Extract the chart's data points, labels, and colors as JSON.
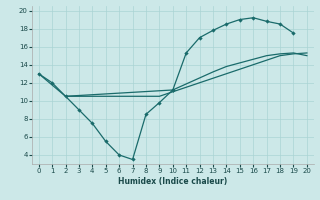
{
  "xlabel": "Humidex (Indice chaleur)",
  "xlim": [
    -0.5,
    20.5
  ],
  "ylim": [
    3,
    20.5
  ],
  "yticks": [
    4,
    6,
    8,
    10,
    12,
    14,
    16,
    18,
    20
  ],
  "xticks": [
    0,
    1,
    2,
    3,
    4,
    5,
    6,
    7,
    8,
    9,
    10,
    11,
    12,
    13,
    14,
    15,
    16,
    17,
    18,
    19,
    20
  ],
  "bg_color": "#cce8e8",
  "line_color": "#1a6b6b",
  "grid_color": "#aad4d4",
  "line1_x": [
    0,
    1,
    2,
    3,
    4,
    5,
    6,
    7,
    8,
    9,
    10
  ],
  "line1_y": [
    13.0,
    12.0,
    10.5,
    9.0,
    7.5,
    5.5,
    4.0,
    3.5,
    8.5,
    9.8,
    11.2
  ],
  "line2_x": [
    10,
    11,
    12,
    13,
    14,
    15,
    16,
    17,
    18,
    19
  ],
  "line2_y": [
    11.2,
    15.3,
    17.0,
    17.8,
    18.5,
    19.0,
    19.2,
    18.8,
    18.5,
    17.5
  ],
  "line3_x": [
    0,
    2,
    10,
    13,
    14,
    15,
    16,
    17,
    18,
    19,
    20
  ],
  "line3_y": [
    13.0,
    10.5,
    11.2,
    13.2,
    13.8,
    14.2,
    14.6,
    15.0,
    15.2,
    15.3,
    15.0
  ],
  "line4_x": [
    2,
    3,
    4,
    5,
    6,
    7,
    8,
    9,
    10,
    11,
    12,
    13,
    14,
    15,
    16,
    17,
    18,
    19,
    20
  ],
  "line4_y": [
    10.5,
    10.5,
    10.5,
    10.5,
    10.5,
    10.5,
    10.5,
    10.5,
    11.0,
    11.5,
    12.0,
    12.5,
    13.0,
    13.5,
    14.0,
    14.5,
    15.0,
    15.2,
    15.3
  ],
  "tick_labelsize": 5,
  "xlabel_fontsize": 5.5,
  "lw": 0.9,
  "markersize": 2.2
}
